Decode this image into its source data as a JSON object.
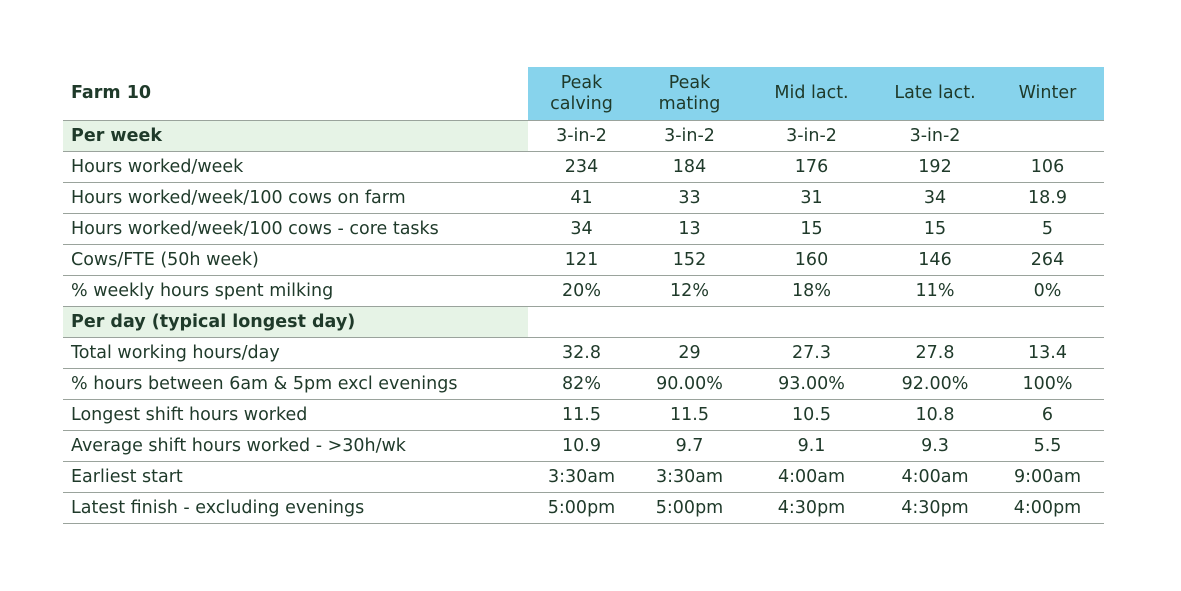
{
  "table": {
    "title": "Farm 10",
    "columns": [
      "Peak\ncalving",
      "Peak\nmating",
      "Mid lact.",
      "Late lact.",
      "Winter"
    ],
    "rows": [
      {
        "section": true,
        "label": "Per week",
        "values": [
          "3-in-2",
          "3-in-2",
          "3-in-2",
          "3-in-2",
          ""
        ]
      },
      {
        "section": false,
        "label": "Hours worked/week",
        "values": [
          "234",
          "184",
          "176",
          "192",
          "106"
        ]
      },
      {
        "section": false,
        "label": "Hours worked/week/100  cows on farm",
        "values": [
          "41",
          "33",
          "31",
          "34",
          "18.9"
        ]
      },
      {
        "section": false,
        "label": "Hours worked/week/100 cows - core tasks",
        "values": [
          "34",
          "13",
          "15",
          "15",
          "5"
        ]
      },
      {
        "section": false,
        "label": "Cows/FTE (50h week)",
        "values": [
          "121",
          "152",
          "160",
          "146",
          "264"
        ]
      },
      {
        "section": false,
        "label": "% weekly hours spent milking",
        "values": [
          "20%",
          "12%",
          "18%",
          "11%",
          "0%"
        ]
      },
      {
        "section": true,
        "label": "Per day (typical longest day)",
        "values": [
          "",
          "",
          "",
          "",
          ""
        ]
      },
      {
        "section": false,
        "label": "Total working hours/day",
        "values": [
          "32.8",
          "29",
          "27.3",
          "27.8",
          "13.4"
        ]
      },
      {
        "section": false,
        "label": "% hours between 6am & 5pm excl evenings",
        "values": [
          "82%",
          "90.00%",
          "93.00%",
          "92.00%",
          "100%"
        ]
      },
      {
        "section": false,
        "label": "Longest shift hours worked",
        "values": [
          "11.5",
          "11.5",
          "10.5",
          "10.8",
          "6"
        ]
      },
      {
        "section": false,
        "label": "Average shift hours worked - >30h/wk",
        "values": [
          "10.9",
          "9.7",
          "9.1",
          "9.3",
          "5.5"
        ]
      },
      {
        "section": false,
        "label": "Earliest start",
        "values": [
          "3:30am",
          "3:30am",
          "4:00am",
          "4:00am",
          "9:00am"
        ]
      },
      {
        "section": false,
        "label": "Latest finish - excluding evenings",
        "values": [
          "5:00pm",
          "5:00pm",
          "4:30pm",
          "4:30pm",
          "4:00pm"
        ]
      }
    ]
  },
  "colors": {
    "header_fill": "#87d3ec",
    "section_fill": "#e6f3e6",
    "text": "#1f3a2a",
    "rule": "#9aa39c"
  }
}
